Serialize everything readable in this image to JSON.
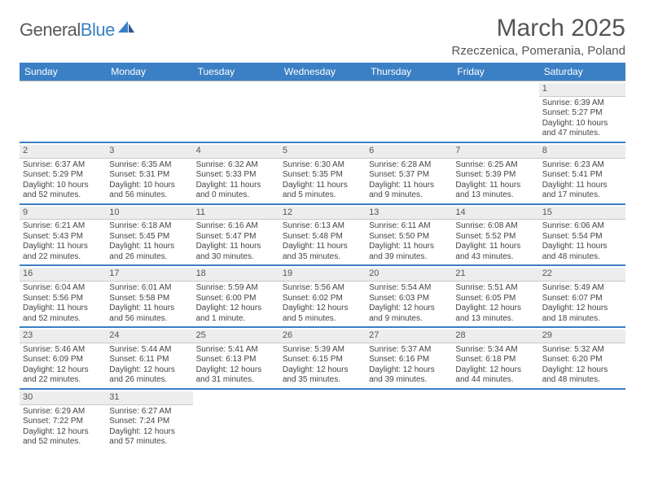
{
  "logo": {
    "word1": "General",
    "word2": "Blue"
  },
  "title": "March 2025",
  "location": "Rzeczenica, Pomerania, Poland",
  "colors": {
    "brand": "#3b7fc4",
    "header_bg": "#3b7fc4",
    "header_text": "#ffffff",
    "daynum_bg": "#ededed",
    "row_divider": "#3b7fc4",
    "text": "#444"
  },
  "calendar": {
    "day_names": [
      "Sunday",
      "Monday",
      "Tuesday",
      "Wednesday",
      "Thursday",
      "Friday",
      "Saturday"
    ],
    "weeks": [
      [
        null,
        null,
        null,
        null,
        null,
        null,
        {
          "n": "1",
          "sunrise": "6:39 AM",
          "sunset": "5:27 PM",
          "daylight": "10 hours and 47 minutes."
        }
      ],
      [
        {
          "n": "2",
          "sunrise": "6:37 AM",
          "sunset": "5:29 PM",
          "daylight": "10 hours and 52 minutes."
        },
        {
          "n": "3",
          "sunrise": "6:35 AM",
          "sunset": "5:31 PM",
          "daylight": "10 hours and 56 minutes."
        },
        {
          "n": "4",
          "sunrise": "6:32 AM",
          "sunset": "5:33 PM",
          "daylight": "11 hours and 0 minutes."
        },
        {
          "n": "5",
          "sunrise": "6:30 AM",
          "sunset": "5:35 PM",
          "daylight": "11 hours and 5 minutes."
        },
        {
          "n": "6",
          "sunrise": "6:28 AM",
          "sunset": "5:37 PM",
          "daylight": "11 hours and 9 minutes."
        },
        {
          "n": "7",
          "sunrise": "6:25 AM",
          "sunset": "5:39 PM",
          "daylight": "11 hours and 13 minutes."
        },
        {
          "n": "8",
          "sunrise": "6:23 AM",
          "sunset": "5:41 PM",
          "daylight": "11 hours and 17 minutes."
        }
      ],
      [
        {
          "n": "9",
          "sunrise": "6:21 AM",
          "sunset": "5:43 PM",
          "daylight": "11 hours and 22 minutes."
        },
        {
          "n": "10",
          "sunrise": "6:18 AM",
          "sunset": "5:45 PM",
          "daylight": "11 hours and 26 minutes."
        },
        {
          "n": "11",
          "sunrise": "6:16 AM",
          "sunset": "5:47 PM",
          "daylight": "11 hours and 30 minutes."
        },
        {
          "n": "12",
          "sunrise": "6:13 AM",
          "sunset": "5:48 PM",
          "daylight": "11 hours and 35 minutes."
        },
        {
          "n": "13",
          "sunrise": "6:11 AM",
          "sunset": "5:50 PM",
          "daylight": "11 hours and 39 minutes."
        },
        {
          "n": "14",
          "sunrise": "6:08 AM",
          "sunset": "5:52 PM",
          "daylight": "11 hours and 43 minutes."
        },
        {
          "n": "15",
          "sunrise": "6:06 AM",
          "sunset": "5:54 PM",
          "daylight": "11 hours and 48 minutes."
        }
      ],
      [
        {
          "n": "16",
          "sunrise": "6:04 AM",
          "sunset": "5:56 PM",
          "daylight": "11 hours and 52 minutes."
        },
        {
          "n": "17",
          "sunrise": "6:01 AM",
          "sunset": "5:58 PM",
          "daylight": "11 hours and 56 minutes."
        },
        {
          "n": "18",
          "sunrise": "5:59 AM",
          "sunset": "6:00 PM",
          "daylight": "12 hours and 1 minute."
        },
        {
          "n": "19",
          "sunrise": "5:56 AM",
          "sunset": "6:02 PM",
          "daylight": "12 hours and 5 minutes."
        },
        {
          "n": "20",
          "sunrise": "5:54 AM",
          "sunset": "6:03 PM",
          "daylight": "12 hours and 9 minutes."
        },
        {
          "n": "21",
          "sunrise": "5:51 AM",
          "sunset": "6:05 PM",
          "daylight": "12 hours and 13 minutes."
        },
        {
          "n": "22",
          "sunrise": "5:49 AM",
          "sunset": "6:07 PM",
          "daylight": "12 hours and 18 minutes."
        }
      ],
      [
        {
          "n": "23",
          "sunrise": "5:46 AM",
          "sunset": "6:09 PM",
          "daylight": "12 hours and 22 minutes."
        },
        {
          "n": "24",
          "sunrise": "5:44 AM",
          "sunset": "6:11 PM",
          "daylight": "12 hours and 26 minutes."
        },
        {
          "n": "25",
          "sunrise": "5:41 AM",
          "sunset": "6:13 PM",
          "daylight": "12 hours and 31 minutes."
        },
        {
          "n": "26",
          "sunrise": "5:39 AM",
          "sunset": "6:15 PM",
          "daylight": "12 hours and 35 minutes."
        },
        {
          "n": "27",
          "sunrise": "5:37 AM",
          "sunset": "6:16 PM",
          "daylight": "12 hours and 39 minutes."
        },
        {
          "n": "28",
          "sunrise": "5:34 AM",
          "sunset": "6:18 PM",
          "daylight": "12 hours and 44 minutes."
        },
        {
          "n": "29",
          "sunrise": "5:32 AM",
          "sunset": "6:20 PM",
          "daylight": "12 hours and 48 minutes."
        }
      ],
      [
        {
          "n": "30",
          "sunrise": "6:29 AM",
          "sunset": "7:22 PM",
          "daylight": "12 hours and 52 minutes."
        },
        {
          "n": "31",
          "sunrise": "6:27 AM",
          "sunset": "7:24 PM",
          "daylight": "12 hours and 57 minutes."
        },
        null,
        null,
        null,
        null,
        null
      ]
    ],
    "labels": {
      "sunrise": "Sunrise:",
      "sunset": "Sunset:",
      "daylight": "Daylight:"
    }
  }
}
